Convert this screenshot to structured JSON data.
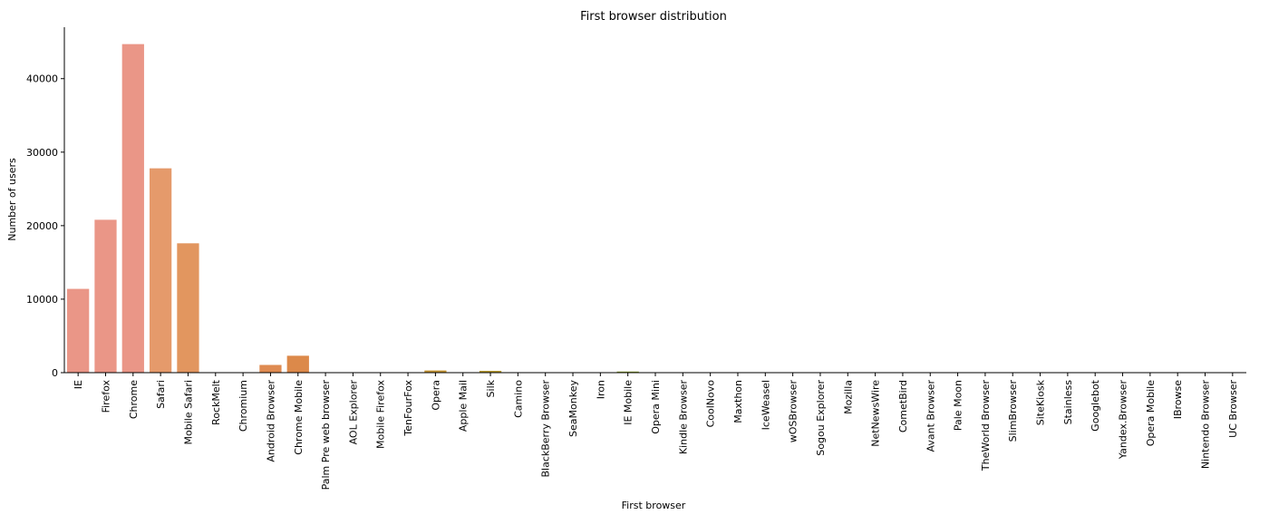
{
  "chart_data": {
    "type": "bar",
    "title": "First browser distribution",
    "xlabel": "First browser",
    "ylabel": "Number of users",
    "ylim": [
      0,
      47000
    ],
    "yticks": [
      0,
      10000,
      20000,
      30000,
      40000
    ],
    "grid": false,
    "legend": "none",
    "categories": [
      "IE",
      "Firefox",
      "Chrome",
      "Safari",
      "Mobile Safari",
      "RockMelt",
      "Chromium",
      "Android Browser",
      "Chrome Mobile",
      "Palm Pre web browser",
      "AOL Explorer",
      "Mobile Firefox",
      "TenFourFox",
      "Opera",
      "Apple Mail",
      "Silk",
      "Camino",
      "BlackBerry Browser",
      "SeaMonkey",
      "Iron",
      "IE Mobile",
      "Opera Mini",
      "Kindle Browser",
      "CoolNovo",
      "Maxthon",
      "IceWeasel",
      "wOSBrowser",
      "Sogou Explorer",
      "Mozilla",
      "NetNewsWire",
      "CometBird",
      "Avant Browser",
      "Pale Moon",
      "TheWorld Browser",
      "SlimBrowser",
      "SiteKiosk",
      "Stainless",
      "Googlebot",
      "Yandex.Browser",
      "Opera Mobile",
      "IBrowse",
      "Nintendo Browser",
      "UC Browser"
    ],
    "values": [
      11400,
      20800,
      44700,
      27800,
      17600,
      10,
      20,
      1050,
      2300,
      10,
      10,
      30,
      10,
      300,
      15,
      250,
      10,
      20,
      15,
      15,
      150,
      10,
      10,
      10,
      10,
      10,
      10,
      10,
      10,
      10,
      10,
      10,
      10,
      10,
      10,
      10,
      10,
      10,
      10,
      10,
      10,
      10,
      10
    ],
    "colors": [
      "#ea9687",
      "#ea9687",
      "#ea9687",
      "#e59a6b",
      "#e2965f",
      "#e1935a",
      "#e08f55",
      "#df8b51",
      "#dc894a",
      "#d78a45",
      "#d48c40",
      "#cf8e3b",
      "#c99138",
      "#c39434",
      "#bc9632",
      "#b59930",
      "#ad9b2f",
      "#a69d2e",
      "#9da02e",
      "#94a22f",
      "#8ba431",
      "#81a634",
      "#77a838",
      "#6daa3d",
      "#62ac43",
      "#58ad4a",
      "#4fae52",
      "#46af5b",
      "#3eaf65",
      "#37b06f",
      "#33b079",
      "#31b083",
      "#31b08d",
      "#33af97",
      "#36aea1",
      "#3aadab",
      "#3fabb5",
      "#45a9bf",
      "#4ca6c9",
      "#53a3d3",
      "#5ba0dc",
      "#649ce4",
      "#6d98eb"
    ]
  }
}
